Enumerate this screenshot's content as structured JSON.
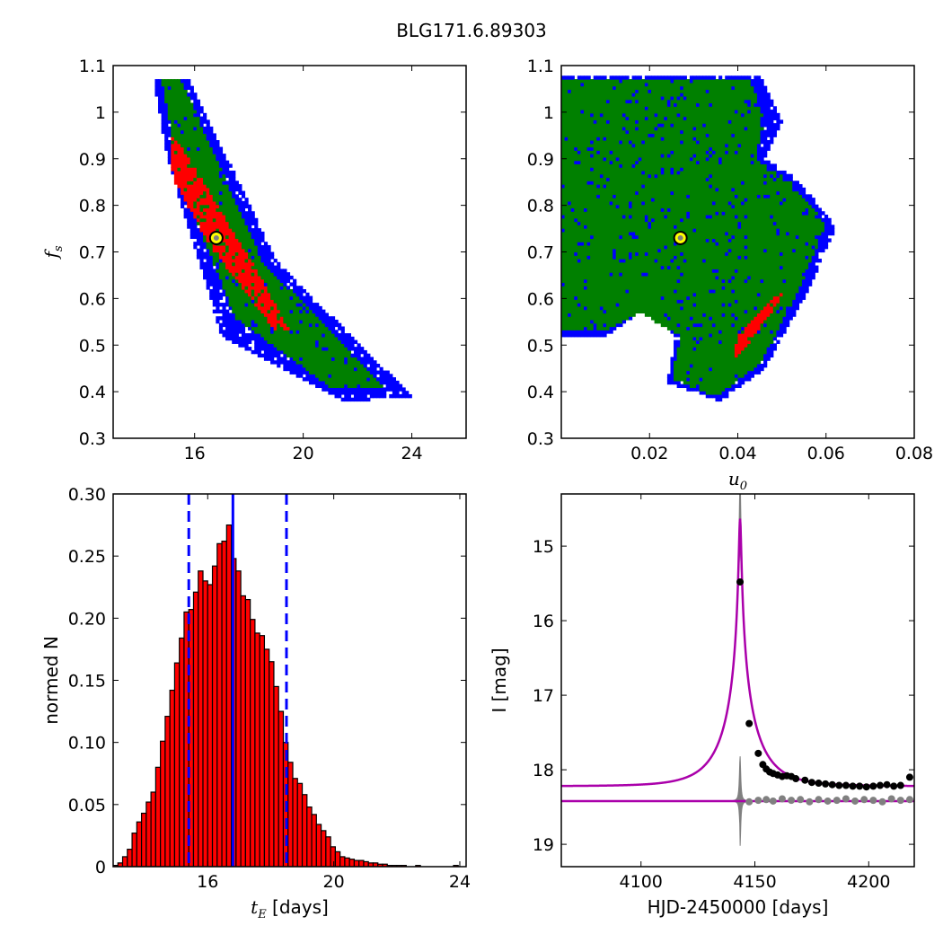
{
  "figure": {
    "title": "BLG171.6.89303"
  },
  "chart_data": [
    {
      "type": "heatmap",
      "panel": "top-left",
      "xlabel": "",
      "ylabel": "f_s",
      "xlim": [
        13,
        26
      ],
      "ylim": [
        0.3,
        1.1
      ],
      "xticks": [
        16,
        20,
        24
      ],
      "yticks": [
        0.3,
        0.4,
        0.5,
        0.6,
        0.7,
        0.8,
        0.9,
        1.0,
        1.1
      ],
      "colors": {
        "outer": "#0000ff",
        "middle": "#008000",
        "inner": "#ff0000"
      },
      "best_fit": {
        "x": 16.8,
        "y": 0.73
      },
      "regions": {
        "outer": [
          [
            14.5,
            1.07
          ],
          [
            15.8,
            1.07
          ],
          [
            19.0,
            0.68
          ],
          [
            24.0,
            0.39
          ],
          [
            21.5,
            0.38
          ],
          [
            17.0,
            0.52
          ],
          [
            15.0,
            0.9
          ]
        ],
        "middle": [
          [
            14.8,
            1.07
          ],
          [
            15.5,
            1.07
          ],
          [
            18.5,
            0.68
          ],
          [
            23.0,
            0.41
          ],
          [
            21.0,
            0.41
          ],
          [
            17.5,
            0.56
          ],
          [
            15.5,
            0.85
          ]
        ],
        "inner": [
          [
            15.1,
            0.95
          ],
          [
            15.6,
            0.92
          ],
          [
            18.3,
            0.66
          ],
          [
            19.5,
            0.53
          ],
          [
            19.0,
            0.53
          ],
          [
            16.5,
            0.72
          ],
          [
            15.2,
            0.86
          ]
        ]
      }
    },
    {
      "type": "heatmap",
      "panel": "top-right",
      "xlabel": "u_0",
      "ylabel": "",
      "xlim": [
        0.0,
        0.08
      ],
      "ylim": [
        0.3,
        1.1
      ],
      "xticks": [
        0.02,
        0.04,
        0.06,
        0.08
      ],
      "yticks": [
        0.3,
        0.4,
        0.5,
        0.6,
        0.7,
        0.8,
        0.9,
        1.0,
        1.1
      ],
      "colors": {
        "outer": "#0000ff",
        "middle": "#008000",
        "inner": "#ff0000"
      },
      "best_fit": {
        "x": 0.027,
        "y": 0.73
      },
      "regions": {
        "outer": [
          [
            0.0,
            1.08
          ],
          [
            0.045,
            1.08
          ],
          [
            0.05,
            0.98
          ],
          [
            0.046,
            0.9
          ],
          [
            0.053,
            0.86
          ],
          [
            0.061,
            0.77
          ],
          [
            0.062,
            0.75
          ],
          [
            0.056,
            0.62
          ],
          [
            0.046,
            0.45
          ],
          [
            0.036,
            0.38
          ],
          [
            0.024,
            0.42
          ],
          [
            0.026,
            0.52
          ],
          [
            0.019,
            0.58
          ],
          [
            0.01,
            0.52
          ],
          [
            0.0,
            0.52
          ]
        ],
        "middle": [
          [
            0.0,
            1.07
          ],
          [
            0.043,
            1.07
          ],
          [
            0.046,
            0.98
          ],
          [
            0.044,
            0.9
          ],
          [
            0.052,
            0.85
          ],
          [
            0.06,
            0.76
          ],
          [
            0.054,
            0.62
          ],
          [
            0.045,
            0.46
          ],
          [
            0.035,
            0.39
          ],
          [
            0.025,
            0.43
          ],
          [
            0.027,
            0.52
          ],
          [
            0.018,
            0.57
          ],
          [
            0.01,
            0.53
          ],
          [
            0.0,
            0.53
          ]
        ],
        "inner": [
          [
            0.04,
            0.52
          ],
          [
            0.051,
            0.63
          ],
          [
            0.049,
            0.59
          ],
          [
            0.042,
            0.5
          ],
          [
            0.039,
            0.47
          ]
        ]
      }
    },
    {
      "type": "bar",
      "panel": "bottom-left",
      "xlabel": "t_E [days]",
      "ylabel": "normed N",
      "xlim": [
        13,
        24.2
      ],
      "ylim": [
        0.0,
        0.3
      ],
      "xticks": [
        16,
        20,
        24
      ],
      "yticks": [
        0.0,
        0.05,
        0.1,
        0.15,
        0.2,
        0.25,
        0.3
      ],
      "bar_color": "#ff0000",
      "bin_start": 13.0,
      "bin_width": 0.15,
      "values": [
        0.001,
        0.003,
        0.008,
        0.014,
        0.027,
        0.036,
        0.043,
        0.052,
        0.06,
        0.08,
        0.101,
        0.121,
        0.142,
        0.164,
        0.184,
        0.205,
        0.207,
        0.221,
        0.238,
        0.23,
        0.227,
        0.242,
        0.26,
        0.262,
        0.275,
        0.248,
        0.238,
        0.218,
        0.215,
        0.199,
        0.188,
        0.186,
        0.175,
        0.165,
        0.145,
        0.125,
        0.1,
        0.084,
        0.071,
        0.067,
        0.058,
        0.048,
        0.042,
        0.034,
        0.029,
        0.024,
        0.016,
        0.012,
        0.008,
        0.007,
        0.006,
        0.005,
        0.005,
        0.004,
        0.003,
        0.003,
        0.002,
        0.002,
        0.001,
        0.001,
        0.001,
        0.001,
        0.0,
        0.0,
        0.001,
        0.0,
        0.0,
        0.0,
        0.0,
        0.0,
        0.0,
        0.0,
        0.001
      ],
      "vlines": [
        {
          "x": 15.4,
          "style": "dashed",
          "color": "#0000ff"
        },
        {
          "x": 16.8,
          "style": "solid",
          "color": "#0000ff"
        },
        {
          "x": 18.5,
          "style": "dashed",
          "color": "#0000ff"
        }
      ]
    },
    {
      "type": "line",
      "panel": "bottom-right",
      "xlabel": "HJD-2450000 [days]",
      "ylabel": "I [mag]",
      "xlim": [
        4065,
        4220
      ],
      "ylim": [
        19.3,
        14.3
      ],
      "y_inverted": true,
      "xticks": [
        4100,
        4150,
        4200
      ],
      "yticks": [
        15,
        16,
        17,
        18,
        19
      ],
      "model": {
        "t0": 4143.5,
        "tE": 16.8,
        "u0": 0.027,
        "fs": 0.73,
        "baseline_mag": 18.22,
        "residual_baseline_mag": 18.42,
        "color": "#aa00aa"
      },
      "uncertainty_color": "#808080",
      "points": {
        "x": [
          4143.5,
          4147.5,
          4151.5,
          4153.5,
          4155,
          4156.5,
          4158,
          4160,
          4162,
          4164,
          4166,
          4168,
          4172,
          4175,
          4178,
          4181,
          4184,
          4187,
          4190,
          4193,
          4196,
          4199,
          4202,
          4205,
          4208,
          4211,
          4214,
          4218
        ],
        "y": [
          15.48,
          17.38,
          17.78,
          17.93,
          17.99,
          18.03,
          18.05,
          18.07,
          18.09,
          18.08,
          18.09,
          18.12,
          18.14,
          18.17,
          18.18,
          18.19,
          18.2,
          18.21,
          18.21,
          18.22,
          18.22,
          18.23,
          18.22,
          18.21,
          18.2,
          18.22,
          18.21,
          18.1
        ],
        "color": "#000000"
      },
      "residual_points": {
        "x": [
          4147.5,
          4151.5,
          4155,
          4158,
          4162,
          4166,
          4170,
          4174,
          4178,
          4182,
          4186,
          4190,
          4194,
          4198,
          4202,
          4206,
          4210,
          4214,
          4218
        ],
        "y": [
          18.43,
          18.41,
          18.4,
          18.42,
          18.39,
          18.41,
          18.4,
          18.43,
          18.4,
          18.42,
          18.41,
          18.39,
          18.42,
          18.4,
          18.41,
          18.43,
          18.39,
          18.41,
          18.4
        ],
        "color": "#808080"
      }
    }
  ]
}
